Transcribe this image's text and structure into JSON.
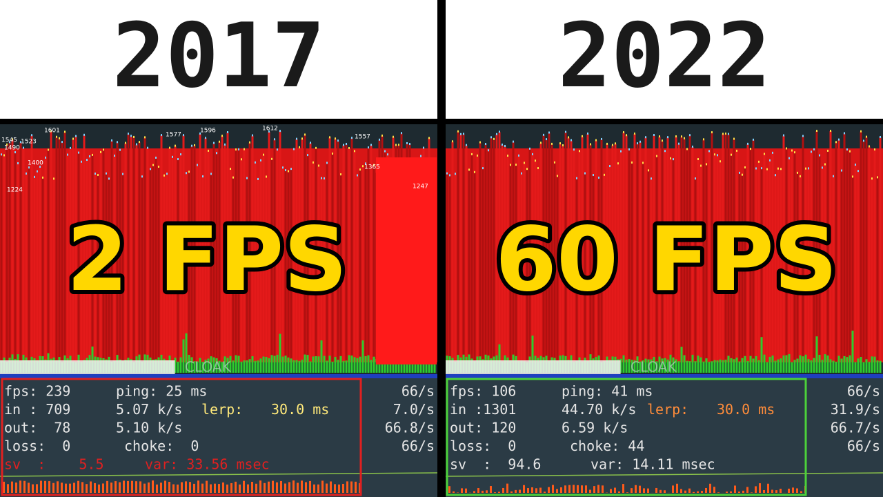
{
  "panels": [
    {
      "year": "2017",
      "fps_label": "2 FPS",
      "watermark": "CLOAK",
      "graph_labels": [
        "1545",
        "1523",
        "1490",
        "1601",
        "1577",
        "1596",
        "1612",
        "1557",
        "1365",
        "1247",
        "1224",
        "1400"
      ],
      "netgraph": {
        "rows": [
          [
            "fps: 239",
            "ping: 25 ms",
            "66/s"
          ],
          [
            "in : 709",
            "5.07 k/s",
            "lerp:",
            "30.0 ms",
            "7.0/s"
          ],
          [
            "out:  78",
            "5.10 k/s",
            "66.8/s"
          ],
          [
            "loss:  0",
            "choke:  0",
            "66/s"
          ],
          [
            "sv  :    5.5",
            "var: 33.56 msec"
          ]
        ]
      }
    },
    {
      "year": "2022",
      "fps_label": "60 FPS",
      "watermark": "CLOAK",
      "graph_labels": [],
      "netgraph": {
        "rows": [
          [
            "fps: 106",
            "ping: 41 ms",
            "66/s"
          ],
          [
            "in :1301",
            "44.70 k/s",
            "lerp:",
            "30.0 ms",
            "31.9/s"
          ],
          [
            "out: 120",
            "6.59 k/s",
            "66.7/s"
          ],
          [
            "loss:  0",
            "choke: 44",
            "66/s"
          ],
          [
            "sv  :  94.6",
            "var: 14.11 msec"
          ]
        ]
      }
    }
  ]
}
